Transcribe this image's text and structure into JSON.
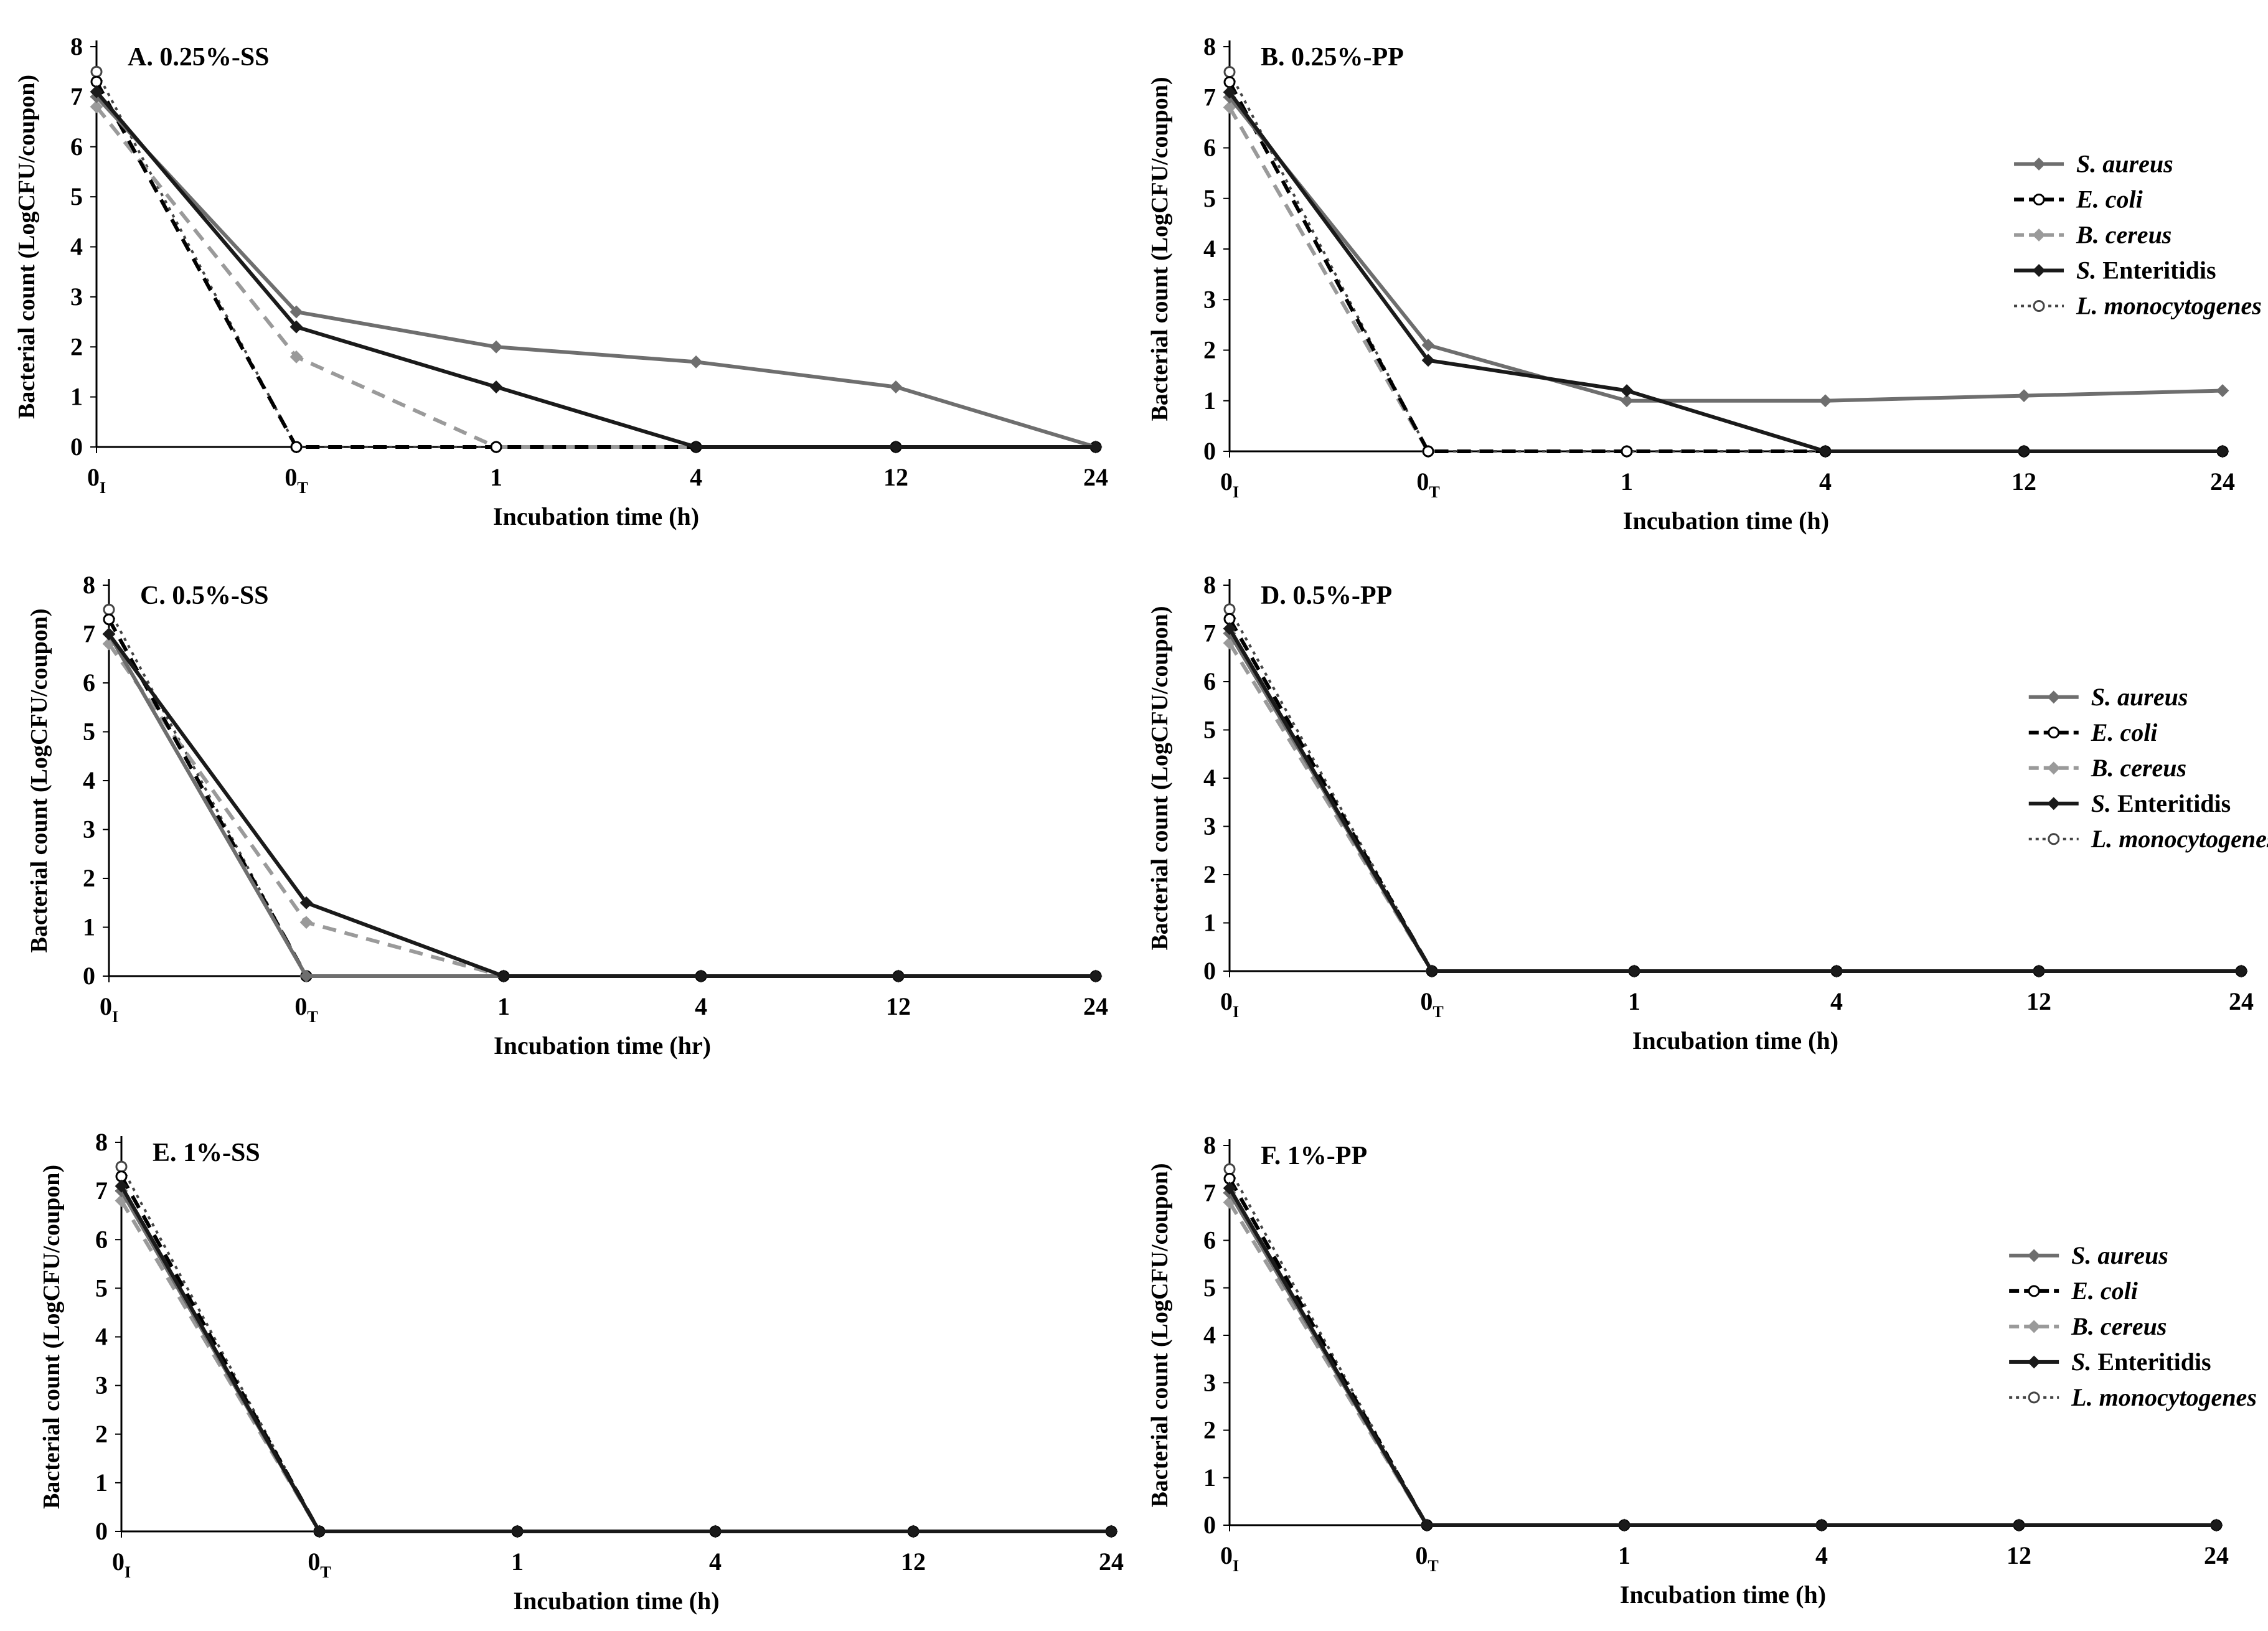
{
  "colors": {
    "S. aureus": "#6e6e6e",
    "E. coli": "#000000",
    "B. cereus": "#9a9a9a",
    "S. Enteritidis": "#1a1a1a",
    "L. monocytogenes": "#444444"
  },
  "chart_data": [
    {
      "type": "line",
      "title": "A. 0.25%-SS",
      "categories": [
        {
          "main": "0",
          "sub": "I"
        },
        {
          "main": "0",
          "sub": "T"
        },
        {
          "main": "1",
          "sub": ""
        },
        {
          "main": "4",
          "sub": ""
        },
        {
          "main": "12",
          "sub": ""
        },
        {
          "main": "24",
          "sub": ""
        }
      ],
      "xlabel": "Incubation time (h)",
      "ylabel": "Bacterial count (LogCFU/coupon)",
      "ylim": [
        0,
        8
      ],
      "yticks": [
        "0",
        "1",
        "2",
        "3",
        "4",
        "5",
        "6",
        "7",
        "8"
      ],
      "legend": false,
      "series": [
        {
          "name": "S. aureus",
          "values": [
            7.0,
            2.7,
            2.0,
            1.7,
            1.2,
            0
          ]
        },
        {
          "name": "E. coli",
          "values": [
            7.3,
            0,
            0,
            0,
            0,
            0
          ]
        },
        {
          "name": "B. cereus",
          "values": [
            6.8,
            1.8,
            0,
            0,
            0,
            0
          ]
        },
        {
          "name": "S. Enteritidis",
          "values": [
            7.1,
            2.4,
            1.2,
            0,
            0,
            0
          ]
        },
        {
          "name": "L. monocytogenes",
          "values": [
            7.5,
            0,
            0,
            0,
            0,
            0
          ]
        }
      ]
    },
    {
      "type": "line",
      "title": "B. 0.25%-PP",
      "categories": [
        {
          "main": "0",
          "sub": "I"
        },
        {
          "main": "0",
          "sub": "T"
        },
        {
          "main": "1",
          "sub": ""
        },
        {
          "main": "4",
          "sub": ""
        },
        {
          "main": "12",
          "sub": ""
        },
        {
          "main": "24",
          "sub": ""
        }
      ],
      "xlabel": "Incubation time (h)",
      "ylabel": "Bacterial count (LogCFU/coupon)",
      "ylim": [
        0,
        8
      ],
      "yticks": [
        "0",
        "1",
        "2",
        "3",
        "4",
        "5",
        "6",
        "7",
        "8"
      ],
      "legend": true,
      "series": [
        {
          "name": "S. aureus",
          "values": [
            7.0,
            2.1,
            1.0,
            1.0,
            1.1,
            1.2
          ]
        },
        {
          "name": "E. coli",
          "values": [
            7.3,
            0,
            0,
            0,
            0,
            0
          ]
        },
        {
          "name": "B. cereus",
          "values": [
            6.8,
            0,
            0,
            0,
            0,
            0
          ]
        },
        {
          "name": "S. Enteritidis",
          "values": [
            7.1,
            1.8,
            1.2,
            0,
            0,
            0
          ]
        },
        {
          "name": "L. monocytogenes",
          "values": [
            7.5,
            0,
            0,
            0,
            0,
            0
          ]
        }
      ]
    },
    {
      "type": "line",
      "title": "C. 0.5%-SS",
      "categories": [
        {
          "main": "0",
          "sub": "I"
        },
        {
          "main": "0",
          "sub": "T"
        },
        {
          "main": "1",
          "sub": ""
        },
        {
          "main": "4",
          "sub": ""
        },
        {
          "main": "12",
          "sub": ""
        },
        {
          "main": "24",
          "sub": ""
        }
      ],
      "xlabel": "Incubation time (hr)",
      "ylabel": "Bacterial count (LogCFU/coupon)",
      "ylim": [
        0,
        8
      ],
      "yticks": [
        "0",
        "1",
        "2",
        "3",
        "4",
        "5",
        "6",
        "7",
        "8"
      ],
      "legend": false,
      "series": [
        {
          "name": "S. aureus",
          "values": [
            7.0,
            0,
            0,
            0,
            0,
            0
          ]
        },
        {
          "name": "E. coli",
          "values": [
            7.3,
            0,
            0,
            0,
            0,
            0
          ]
        },
        {
          "name": "B. cereus",
          "values": [
            6.8,
            1.1,
            0,
            0,
            0,
            0
          ]
        },
        {
          "name": "S. Enteritidis",
          "values": [
            7.0,
            1.5,
            0,
            0,
            0,
            0
          ]
        },
        {
          "name": "L. monocytogenes",
          "values": [
            7.5,
            0,
            0,
            0,
            0,
            0
          ]
        }
      ]
    },
    {
      "type": "line",
      "title": "D. 0.5%-PP",
      "categories": [
        {
          "main": "0",
          "sub": "I"
        },
        {
          "main": "0",
          "sub": "T"
        },
        {
          "main": "1",
          "sub": ""
        },
        {
          "main": "4",
          "sub": ""
        },
        {
          "main": "12",
          "sub": ""
        },
        {
          "main": "24",
          "sub": ""
        }
      ],
      "xlabel": "Incubation time (h)",
      "ylabel": "Bacterial count (LogCFU/coupon)",
      "ylim": [
        0,
        8
      ],
      "yticks": [
        "0",
        "1",
        "2",
        "3",
        "4",
        "5",
        "6",
        "7",
        "8"
      ],
      "legend": true,
      "series": [
        {
          "name": "S. aureus",
          "values": [
            7.0,
            0,
            0,
            0,
            0,
            0
          ]
        },
        {
          "name": "E. coli",
          "values": [
            7.3,
            0,
            0,
            0,
            0,
            0
          ]
        },
        {
          "name": "B. cereus",
          "values": [
            6.8,
            0,
            0,
            0,
            0,
            0
          ]
        },
        {
          "name": "S. Enteritidis",
          "values": [
            7.1,
            0,
            0,
            0,
            0,
            0
          ]
        },
        {
          "name": "L. monocytogenes",
          "values": [
            7.5,
            0,
            0,
            0,
            0,
            0
          ]
        }
      ]
    },
    {
      "type": "line",
      "title": "E. 1%-SS",
      "categories": [
        {
          "main": "0",
          "sub": "I"
        },
        {
          "main": "0",
          "sub": "T"
        },
        {
          "main": "1",
          "sub": ""
        },
        {
          "main": "4",
          "sub": ""
        },
        {
          "main": "12",
          "sub": ""
        },
        {
          "main": "24",
          "sub": ""
        }
      ],
      "xlabel": "Incubation time (h)",
      "ylabel": "Bacterial count (LogCFU/coupon)",
      "ylim": [
        0,
        8
      ],
      "yticks": [
        "0",
        "1",
        "2",
        "3",
        "4",
        "5",
        "6",
        "7",
        "8"
      ],
      "legend": false,
      "series": [
        {
          "name": "S. aureus",
          "values": [
            7.0,
            0,
            0,
            0,
            0,
            0
          ]
        },
        {
          "name": "E. coli",
          "values": [
            7.3,
            0,
            0,
            0,
            0,
            0
          ]
        },
        {
          "name": "B. cereus",
          "values": [
            6.8,
            0,
            0,
            0,
            0,
            0
          ]
        },
        {
          "name": "S. Enteritidis",
          "values": [
            7.1,
            0,
            0,
            0,
            0,
            0
          ]
        },
        {
          "name": "L. monocytogenes",
          "values": [
            7.5,
            0,
            0,
            0,
            0,
            0
          ]
        }
      ]
    },
    {
      "type": "line",
      "title": "F. 1%-PP",
      "categories": [
        {
          "main": "0",
          "sub": "I"
        },
        {
          "main": "0",
          "sub": "T"
        },
        {
          "main": "1",
          "sub": ""
        },
        {
          "main": "4",
          "sub": ""
        },
        {
          "main": "12",
          "sub": ""
        },
        {
          "main": "24",
          "sub": ""
        }
      ],
      "xlabel": "Incubation time (h)",
      "ylabel": "Bacterial count (LogCFU/coupon)",
      "ylim": [
        0,
        8
      ],
      "yticks": [
        "0",
        "1",
        "2",
        "3",
        "4",
        "5",
        "6",
        "7",
        "8"
      ],
      "legend": true,
      "series": [
        {
          "name": "S. aureus",
          "values": [
            7.0,
            0,
            0,
            0,
            0,
            0
          ]
        },
        {
          "name": "E. coli",
          "values": [
            7.3,
            0,
            0,
            0,
            0,
            0
          ]
        },
        {
          "name": "B. cereus",
          "values": [
            6.8,
            0,
            0,
            0,
            0,
            0
          ]
        },
        {
          "name": "S. Enteritidis",
          "values": [
            7.1,
            0,
            0,
            0,
            0,
            0
          ]
        },
        {
          "name": "L. monocytogenes",
          "values": [
            7.5,
            0,
            0,
            0,
            0,
            0
          ]
        }
      ]
    }
  ]
}
